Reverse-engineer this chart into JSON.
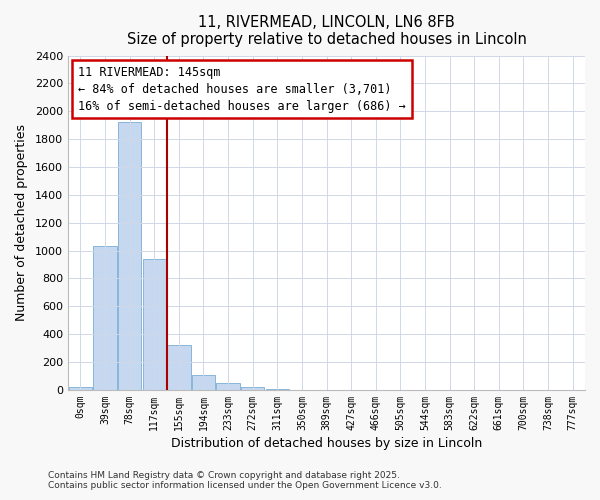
{
  "title": "11, RIVERMEAD, LINCOLN, LN6 8FB",
  "subtitle": "Size of property relative to detached houses in Lincoln",
  "xlabel": "Distribution of detached houses by size in Lincoln",
  "ylabel": "Number of detached properties",
  "bar_labels": [
    "0sqm",
    "39sqm",
    "78sqm",
    "117sqm",
    "155sqm",
    "194sqm",
    "233sqm",
    "272sqm",
    "311sqm",
    "350sqm",
    "389sqm",
    "427sqm",
    "466sqm",
    "505sqm",
    "544sqm",
    "583sqm",
    "622sqm",
    "661sqm",
    "700sqm",
    "738sqm",
    "777sqm"
  ],
  "bar_values": [
    20,
    1030,
    1920,
    940,
    320,
    105,
    50,
    20,
    5,
    0,
    0,
    0,
    0,
    0,
    0,
    0,
    0,
    0,
    0,
    0,
    0
  ],
  "bar_color": "#c5d8f0",
  "bar_edge_color": "#7aadd4",
  "vline_color": "#aa0000",
  "vline_index": 4,
  "annotation_title": "11 RIVERMEAD: 145sqm",
  "annotation_line1": "← 84% of detached houses are smaller (3,701)",
  "annotation_line2": "16% of semi-detached houses are larger (686) →",
  "annotation_box_color": "#cc0000",
  "ylim": [
    0,
    2400
  ],
  "yticks": [
    0,
    200,
    400,
    600,
    800,
    1000,
    1200,
    1400,
    1600,
    1800,
    2000,
    2200,
    2400
  ],
  "footer1": "Contains HM Land Registry data © Crown copyright and database right 2025.",
  "footer2": "Contains public sector information licensed under the Open Government Licence v3.0.",
  "bg_color": "#f8f8f8",
  "plot_bg_color": "#ffffff",
  "grid_color": "#d0d8e8"
}
